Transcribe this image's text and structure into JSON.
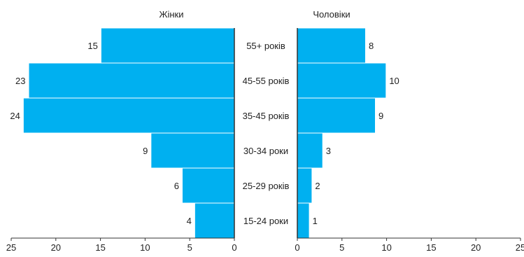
{
  "chart_data": {
    "type": "bar",
    "orientation": "horizontal",
    "layout": "population-pyramid",
    "categories": [
      "55+ років",
      "45-55 років",
      "35-45 років",
      "30-34 роки",
      "25-29 років",
      "15-24 роки"
    ],
    "series": [
      {
        "name": "Жінки",
        "values": [
          15,
          23,
          24,
          9,
          6,
          4
        ],
        "labels": [
          "15",
          "23",
          "24",
          "9",
          "6",
          "4"
        ]
      },
      {
        "name": "Чоловіки",
        "values": [
          8,
          10,
          9,
          3,
          2,
          1
        ],
        "labels": [
          "8",
          "10",
          "9",
          "3",
          "2",
          "1"
        ]
      }
    ],
    "estimated_values": {
      "Жінки": [
        14.9,
        23.0,
        23.6,
        9.3,
        5.8,
        4.4
      ],
      "Чоловіки": [
        7.6,
        9.9,
        8.7,
        2.8,
        1.6,
        1.3
      ]
    },
    "xlim": [
      0,
      25
    ],
    "x_ticks": [
      0,
      5,
      10,
      15,
      20,
      25
    ],
    "x_tick_labels": [
      "0",
      "5",
      "10",
      "15",
      "20",
      "25"
    ],
    "grid": false,
    "bar_color": "#00b0f0",
    "axis_color": "#333333",
    "legend": "none"
  }
}
